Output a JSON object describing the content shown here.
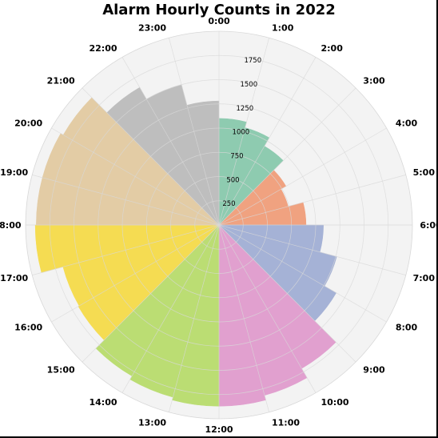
{
  "chart_data": {
    "type": "polar-bar",
    "title": "Alarm Hourly Counts in 2022",
    "categories": [
      "0:00",
      "1:00",
      "2:00",
      "3:00",
      "4:00",
      "5:00",
      "6:00",
      "7:00",
      "8:00",
      "9:00",
      "10:00",
      "11:00",
      "12:00",
      "13:00",
      "14:00",
      "15:00",
      "16:00",
      "17:00",
      "18:00",
      "19:00",
      "20:00",
      "21:00",
      "22:00",
      "23:00"
    ],
    "values": [
      1100,
      1040,
      940,
      800,
      740,
      900,
      1080,
      1260,
      1400,
      1710,
      1820,
      1870,
      1870,
      1840,
      1800,
      1680,
      1670,
      1900,
      1890,
      1890,
      1860,
      1640,
      1500,
      1280
    ],
    "radial_ticks": [
      250,
      500,
      750,
      1000,
      1250,
      1500,
      1750
    ],
    "radial_max": 2000,
    "direction": "clockwise",
    "zero_location": "top",
    "grid": true,
    "colors": [
      "#8ecbb0",
      "#8ecbb0",
      "#8ecbb0",
      "#f0a280",
      "#f0a280",
      "#f0a280",
      "#a5b2d6",
      "#a5b2d6",
      "#a5b2d6",
      "#e1a0cf",
      "#e1a0cf",
      "#e1a0cf",
      "#bbdd73",
      "#bbdd73",
      "#bbdd73",
      "#f5dc52",
      "#f5dc52",
      "#f5dc52",
      "#e3cca5",
      "#e3cca5",
      "#e3cca5",
      "#bebebe",
      "#bebebe",
      "#bebebe"
    ],
    "background_color": "#f3f3f3",
    "grid_color": "#d8d8d8"
  }
}
